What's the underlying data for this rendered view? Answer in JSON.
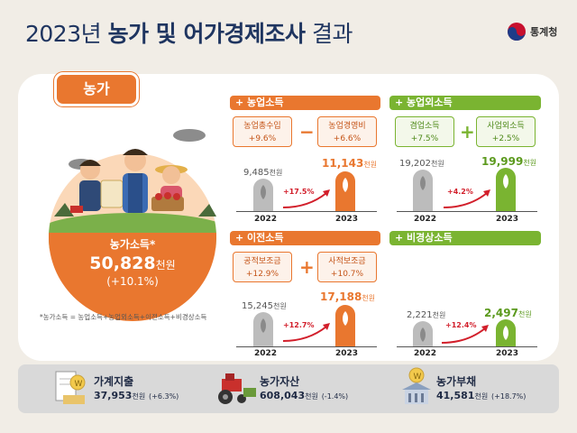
{
  "title": {
    "year": "2023년",
    "main": "농가 및 어가경제조사",
    "suffix": "결과"
  },
  "agency": "통계청",
  "section_tag": "농가",
  "total": {
    "label": "농가소득",
    "value": "50,828",
    "unit": "천원",
    "change": "(+10.1%)"
  },
  "footnote": "*농가소득 = 농업소득+농업외소득+이전소득+비경상소득",
  "sections": {
    "farm": {
      "title": "농업소득",
      "pill1": {
        "name": "농업총수입",
        "change": "+9.6%"
      },
      "op": "−",
      "pill2": {
        "name": "농업경영비",
        "change": "+6.6%"
      },
      "v2022": "9,485",
      "v2023": "11,143",
      "unit": "천원",
      "growth": "+17.5%",
      "y1": "2022",
      "y2": "2023"
    },
    "nonfarm": {
      "title": "농업외소득",
      "pill1": {
        "name": "겸업소득",
        "change": "+7.5%"
      },
      "op": "+",
      "pill2": {
        "name": "사업외소득",
        "change": "+2.5%"
      },
      "v2022": "19,202",
      "v2023": "19,999",
      "unit": "천원",
      "growth": "+4.2%",
      "y1": "2022",
      "y2": "2023"
    },
    "transfer": {
      "title": "이전소득",
      "pill1": {
        "name": "공적보조금",
        "change": "+12.9%"
      },
      "op": "+",
      "pill2": {
        "name": "사적보조금",
        "change": "+10.7%"
      },
      "v2022": "15,245",
      "v2023": "17,188",
      "unit": "천원",
      "growth": "+12.7%",
      "y1": "2022",
      "y2": "2023"
    },
    "irregular": {
      "title": "비경상소득",
      "v2022": "2,221",
      "v2023": "2,497",
      "unit": "천원",
      "growth": "+12.4%",
      "y1": "2022",
      "y2": "2023"
    }
  },
  "bottom": [
    {
      "label": "가계지출",
      "value": "37,953",
      "unit": "천원",
      "change": "(+6.3%)",
      "icon": "receipt-coin-icon"
    },
    {
      "label": "농가자산",
      "value": "608,043",
      "unit": "천원",
      "change": "(-1.4%)",
      "icon": "tractor-icon"
    },
    {
      "label": "농가부채",
      "value": "41,581",
      "unit": "천원",
      "change": "(+18.7%)",
      "icon": "debt-building-icon"
    }
  ],
  "colors": {
    "orange": "#e9772f",
    "green": "#7ab431",
    "navy": "#1f3560",
    "gray_bar": "#bcbcbc"
  }
}
